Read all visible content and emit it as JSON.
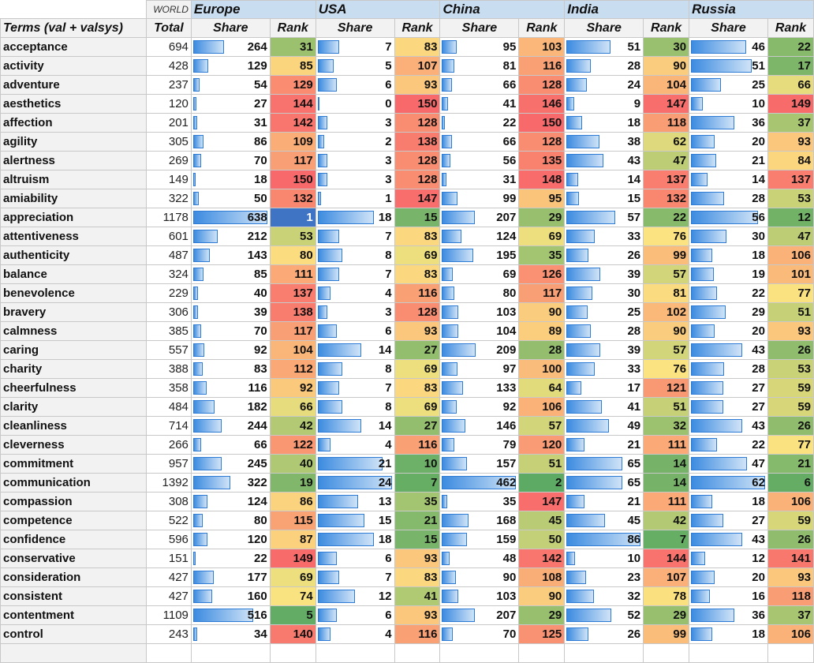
{
  "header": {
    "world_label": "WORLD",
    "regions": [
      "Europe",
      "USA",
      "China",
      "India",
      "Russia"
    ],
    "terms_label": "Terms (val + valsys)",
    "total_label": "Total",
    "share_label": "Share",
    "rank_label": "Rank"
  },
  "rows": [
    {
      "term": "acceptance",
      "total": 694,
      "vals": [
        [
          264,
          31
        ],
        [
          7,
          83
        ],
        [
          95,
          103
        ],
        [
          51,
          30
        ],
        [
          46,
          22
        ]
      ]
    },
    {
      "term": "activity",
      "total": 428,
      "vals": [
        [
          129,
          85
        ],
        [
          5,
          107
        ],
        [
          81,
          116
        ],
        [
          28,
          90
        ],
        [
          51,
          17
        ]
      ]
    },
    {
      "term": "adventure",
      "total": 237,
      "vals": [
        [
          54,
          129
        ],
        [
          6,
          93
        ],
        [
          66,
          128
        ],
        [
          24,
          104
        ],
        [
          25,
          66
        ]
      ]
    },
    {
      "term": "aesthetics",
      "total": 120,
      "vals": [
        [
          27,
          144
        ],
        [
          0,
          150
        ],
        [
          41,
          146
        ],
        [
          9,
          147
        ],
        [
          10,
          149
        ]
      ]
    },
    {
      "term": "affection",
      "total": 201,
      "vals": [
        [
          31,
          142
        ],
        [
          3,
          128
        ],
        [
          22,
          150
        ],
        [
          18,
          118
        ],
        [
          36,
          37
        ]
      ]
    },
    {
      "term": "agility",
      "total": 305,
      "vals": [
        [
          86,
          109
        ],
        [
          2,
          138
        ],
        [
          66,
          128
        ],
        [
          38,
          62
        ],
        [
          20,
          93
        ]
      ]
    },
    {
      "term": "alertness",
      "total": 269,
      "vals": [
        [
          70,
          117
        ],
        [
          3,
          128
        ],
        [
          56,
          135
        ],
        [
          43,
          47
        ],
        [
          21,
          84
        ]
      ]
    },
    {
      "term": "altruism",
      "total": 149,
      "vals": [
        [
          18,
          150
        ],
        [
          3,
          128
        ],
        [
          31,
          148
        ],
        [
          14,
          137
        ],
        [
          14,
          137
        ]
      ]
    },
    {
      "term": "amiability",
      "total": 322,
      "vals": [
        [
          50,
          132
        ],
        [
          1,
          147
        ],
        [
          99,
          95
        ],
        [
          15,
          132
        ],
        [
          28,
          53
        ]
      ]
    },
    {
      "term": "appreciation",
      "total": 1178,
      "vals": [
        [
          638,
          1
        ],
        [
          18,
          15
        ],
        [
          207,
          29
        ],
        [
          57,
          22
        ],
        [
          56,
          12
        ]
      ]
    },
    {
      "term": "attentiveness",
      "total": 601,
      "vals": [
        [
          212,
          53
        ],
        [
          7,
          83
        ],
        [
          124,
          69
        ],
        [
          33,
          76
        ],
        [
          30,
          47
        ]
      ]
    },
    {
      "term": "authenticity",
      "total": 487,
      "vals": [
        [
          143,
          80
        ],
        [
          8,
          69
        ],
        [
          195,
          35
        ],
        [
          26,
          99
        ],
        [
          18,
          106
        ]
      ]
    },
    {
      "term": "balance",
      "total": 324,
      "vals": [
        [
          85,
          111
        ],
        [
          7,
          83
        ],
        [
          69,
          126
        ],
        [
          39,
          57
        ],
        [
          19,
          101
        ]
      ]
    },
    {
      "term": "benevolence",
      "total": 229,
      "vals": [
        [
          40,
          137
        ],
        [
          4,
          116
        ],
        [
          80,
          117
        ],
        [
          30,
          81
        ],
        [
          22,
          77
        ]
      ]
    },
    {
      "term": "bravery",
      "total": 306,
      "vals": [
        [
          39,
          138
        ],
        [
          3,
          128
        ],
        [
          103,
          90
        ],
        [
          25,
          102
        ],
        [
          29,
          51
        ]
      ]
    },
    {
      "term": "calmness",
      "total": 385,
      "vals": [
        [
          70,
          117
        ],
        [
          6,
          93
        ],
        [
          104,
          89
        ],
        [
          28,
          90
        ],
        [
          20,
          93
        ]
      ]
    },
    {
      "term": "caring",
      "total": 557,
      "vals": [
        [
          92,
          104
        ],
        [
          14,
          27
        ],
        [
          209,
          28
        ],
        [
          39,
          57
        ],
        [
          43,
          26
        ]
      ]
    },
    {
      "term": "charity",
      "total": 388,
      "vals": [
        [
          83,
          112
        ],
        [
          8,
          69
        ],
        [
          97,
          100
        ],
        [
          33,
          76
        ],
        [
          28,
          53
        ]
      ]
    },
    {
      "term": "cheerfulness",
      "total": 358,
      "vals": [
        [
          116,
          92
        ],
        [
          7,
          83
        ],
        [
          133,
          64
        ],
        [
          17,
          121
        ],
        [
          27,
          59
        ]
      ]
    },
    {
      "term": "clarity",
      "total": 484,
      "vals": [
        [
          182,
          66
        ],
        [
          8,
          69
        ],
        [
          92,
          106
        ],
        [
          41,
          51
        ],
        [
          27,
          59
        ]
      ]
    },
    {
      "term": "cleanliness",
      "total": 714,
      "vals": [
        [
          244,
          42
        ],
        [
          14,
          27
        ],
        [
          146,
          57
        ],
        [
          49,
          32
        ],
        [
          43,
          26
        ]
      ]
    },
    {
      "term": "cleverness",
      "total": 266,
      "vals": [
        [
          66,
          122
        ],
        [
          4,
          116
        ],
        [
          79,
          120
        ],
        [
          21,
          111
        ],
        [
          22,
          77
        ]
      ]
    },
    {
      "term": "commitment",
      "total": 957,
      "vals": [
        [
          245,
          40
        ],
        [
          21,
          10
        ],
        [
          157,
          51
        ],
        [
          65,
          14
        ],
        [
          47,
          21
        ]
      ]
    },
    {
      "term": "communication",
      "total": 1392,
      "vals": [
        [
          322,
          19
        ],
        [
          24,
          7
        ],
        [
          462,
          2
        ],
        [
          65,
          14
        ],
        [
          62,
          6
        ]
      ]
    },
    {
      "term": "compassion",
      "total": 308,
      "vals": [
        [
          124,
          86
        ],
        [
          13,
          35
        ],
        [
          35,
          147
        ],
        [
          21,
          111
        ],
        [
          18,
          106
        ]
      ]
    },
    {
      "term": "competence",
      "total": 522,
      "vals": [
        [
          80,
          115
        ],
        [
          15,
          21
        ],
        [
          168,
          45
        ],
        [
          45,
          42
        ],
        [
          27,
          59
        ]
      ]
    },
    {
      "term": "confidence",
      "total": 596,
      "vals": [
        [
          120,
          87
        ],
        [
          18,
          15
        ],
        [
          159,
          50
        ],
        [
          86,
          7
        ],
        [
          43,
          26
        ]
      ]
    },
    {
      "term": "conservative",
      "total": 151,
      "vals": [
        [
          22,
          149
        ],
        [
          6,
          93
        ],
        [
          48,
          142
        ],
        [
          10,
          144
        ],
        [
          12,
          141
        ]
      ]
    },
    {
      "term": "consideration",
      "total": 427,
      "vals": [
        [
          177,
          69
        ],
        [
          7,
          83
        ],
        [
          90,
          108
        ],
        [
          23,
          107
        ],
        [
          20,
          93
        ]
      ]
    },
    {
      "term": "consistent",
      "total": 427,
      "vals": [
        [
          160,
          74
        ],
        [
          12,
          41
        ],
        [
          103,
          90
        ],
        [
          32,
          78
        ],
        [
          16,
          118
        ]
      ]
    },
    {
      "term": "contentment",
      "total": 1109,
      "vals": [
        [
          516,
          5
        ],
        [
          6,
          93
        ],
        [
          207,
          29
        ],
        [
          52,
          29
        ],
        [
          36,
          37
        ]
      ]
    },
    {
      "term": "control",
      "total": 243,
      "vals": [
        [
          34,
          140
        ],
        [
          4,
          116
        ],
        [
          70,
          125
        ],
        [
          26,
          99
        ],
        [
          18,
          106
        ]
      ]
    },
    {
      "term": "",
      "total": null,
      "vals": [
        [
          null,
          null
        ],
        [
          null,
          null
        ],
        [
          null,
          null
        ],
        [
          null,
          null
        ],
        [
          null,
          null
        ]
      ]
    }
  ],
  "rank_max": 150,
  "colors": {
    "rank_best": "#5aa963",
    "rank_mid": "#fbe481",
    "rank_worst": "#f8696b",
    "rank_top1": "#3f74c5",
    "bar_border": "#2e7bd6",
    "header_region_bg": "#c9ddf0",
    "header_bg": "#f2f2f2"
  }
}
